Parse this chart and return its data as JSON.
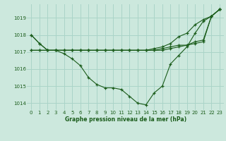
{
  "title": "Graphe pression niveau de la mer (hPa)",
  "bg_color": "#cce8dd",
  "grid_color": "#aad4c8",
  "line_color": "#1a5c1a",
  "xlim": [
    -0.5,
    23.5
  ],
  "ylim": [
    1013.6,
    1019.8
  ],
  "yticks": [
    1014,
    1015,
    1016,
    1017,
    1018,
    1019
  ],
  "xticks": [
    0,
    1,
    2,
    3,
    4,
    5,
    6,
    7,
    8,
    9,
    10,
    11,
    12,
    13,
    14,
    15,
    16,
    17,
    18,
    19,
    20,
    21,
    22,
    23
  ],
  "series": [
    [
      1018.0,
      1017.5,
      1017.1,
      1017.1,
      1016.9,
      1016.6,
      1016.2,
      1015.5,
      1015.1,
      1014.9,
      1014.9,
      1014.8,
      1014.4,
      1014.0,
      1013.9,
      1014.6,
      1015.0,
      1016.3,
      1016.8,
      1017.3,
      1018.1,
      1018.8,
      1019.1,
      1019.5
    ],
    [
      1017.1,
      1017.1,
      1017.1,
      1017.1,
      1017.1,
      1017.1,
      1017.1,
      1017.1,
      1017.1,
      1017.1,
      1017.1,
      1017.1,
      1017.1,
      1017.1,
      1017.1,
      1017.1,
      1017.1,
      1017.2,
      1017.3,
      1017.4,
      1017.5,
      1017.6,
      1019.1,
      1019.5
    ],
    [
      1017.1,
      1017.1,
      1017.1,
      1017.1,
      1017.1,
      1017.1,
      1017.1,
      1017.1,
      1017.1,
      1017.1,
      1017.1,
      1017.1,
      1017.1,
      1017.1,
      1017.1,
      1017.2,
      1017.3,
      1017.5,
      1017.9,
      1018.1,
      1018.6,
      1018.9,
      1019.1,
      1019.5
    ],
    [
      1018.0,
      1017.5,
      1017.1,
      1017.1,
      1017.1,
      1017.1,
      1017.1,
      1017.1,
      1017.1,
      1017.1,
      1017.1,
      1017.1,
      1017.1,
      1017.1,
      1017.1,
      1017.1,
      1017.2,
      1017.3,
      1017.4,
      1017.4,
      1017.6,
      1017.7,
      1019.1,
      1019.5
    ]
  ]
}
